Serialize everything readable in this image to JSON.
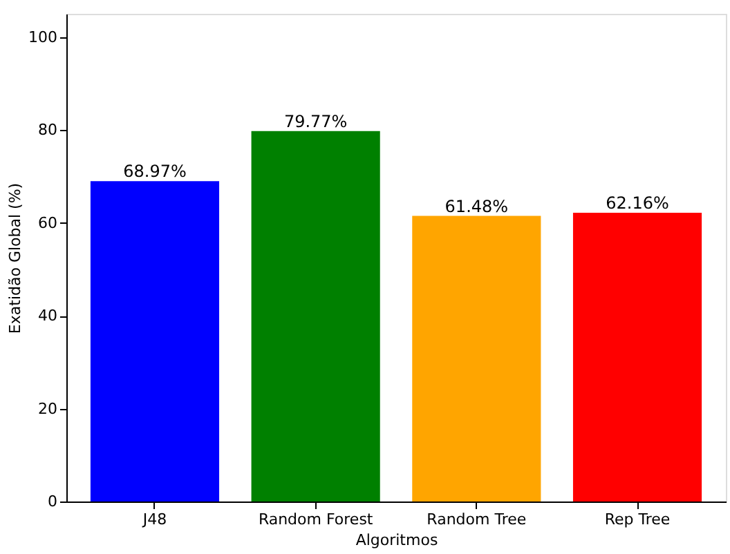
{
  "chart_data": {
    "type": "bar",
    "xlabel": "Algoritmos",
    "ylabel": "Exatidão Global (%)",
    "categories": [
      "J48",
      "Random Forest",
      "Random Tree",
      "Rep Tree"
    ],
    "values": [
      68.97,
      79.77,
      61.48,
      62.16
    ],
    "colors": [
      "#0000ff",
      "#008000",
      "#ffa500",
      "#ff0000"
    ],
    "value_labels": [
      "68.97%",
      "79.77%",
      "61.48%",
      "62.16%"
    ],
    "ylim": [
      0,
      105
    ],
    "yticks": [
      0,
      20,
      40,
      60,
      80,
      100
    ],
    "grid": false
  }
}
